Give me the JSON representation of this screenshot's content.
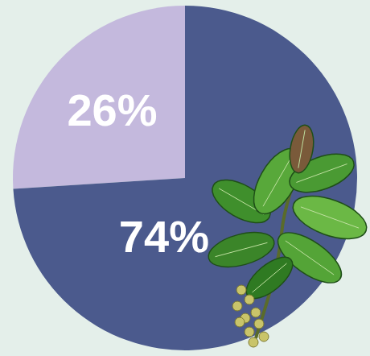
{
  "chart_data": {
    "type": "pie",
    "values": [
      26,
      74
    ],
    "value_labels": [
      "26%",
      "74%"
    ],
    "colors": [
      "#c4b9dd",
      "#4b5a8d"
    ],
    "data_labels": true
  }
}
